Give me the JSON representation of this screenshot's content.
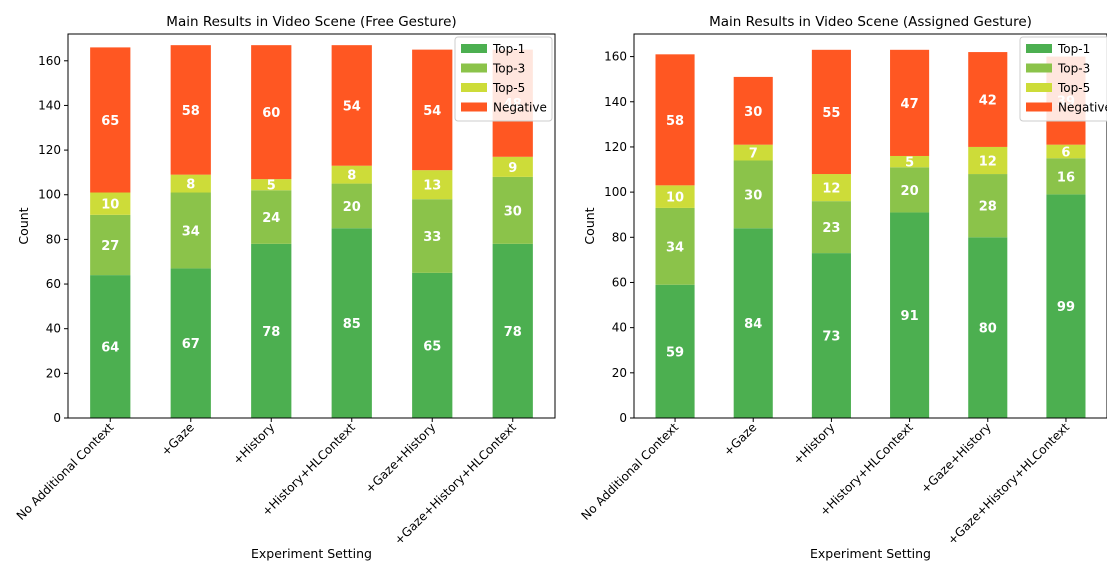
{
  "chart_data": [
    {
      "type": "bar",
      "stacked": true,
      "title": "Main Results in Video Scene (Free Gesture)",
      "xlabel": "Experiment Setting",
      "ylabel": "Count",
      "ylim": [
        0,
        172
      ],
      "yticks": [
        0,
        20,
        40,
        60,
        80,
        100,
        120,
        140,
        160
      ],
      "categories": [
        "No Additional Context",
        "+Gaze",
        "+History",
        "+History+HLContext",
        "+Gaze+History",
        "+Gaze+History+HLContext"
      ],
      "series": [
        {
          "name": "Top-1",
          "color": "#4caf50",
          "values": [
            64,
            67,
            78,
            85,
            65,
            78
          ]
        },
        {
          "name": "Top-3",
          "color": "#8bc34a",
          "values": [
            27,
            34,
            24,
            20,
            33,
            30
          ]
        },
        {
          "name": "Top-5",
          "color": "#cddc39",
          "values": [
            10,
            8,
            5,
            8,
            13,
            9
          ]
        },
        {
          "name": "Negative",
          "color": "#ff5722",
          "values": [
            65,
            58,
            60,
            54,
            54,
            48
          ]
        }
      ],
      "legend": "top-right",
      "grid": false
    },
    {
      "type": "bar",
      "stacked": true,
      "title": "Main Results in Video Scene (Assigned Gesture)",
      "xlabel": "Experiment Setting",
      "ylabel": "Count",
      "ylim": [
        0,
        170
      ],
      "yticks": [
        0,
        20,
        40,
        60,
        80,
        100,
        120,
        140,
        160
      ],
      "categories": [
        "No Additional Context",
        "+Gaze",
        "+History",
        "+History+HLContext",
        "+Gaze+History",
        "+Gaze+History+HLContext"
      ],
      "series": [
        {
          "name": "Top-1",
          "color": "#4caf50",
          "values": [
            59,
            84,
            73,
            91,
            80,
            99
          ]
        },
        {
          "name": "Top-3",
          "color": "#8bc34a",
          "values": [
            34,
            30,
            23,
            20,
            28,
            16
          ]
        },
        {
          "name": "Top-5",
          "color": "#cddc39",
          "values": [
            10,
            7,
            12,
            5,
            12,
            6
          ]
        },
        {
          "name": "Negative",
          "color": "#ff5722",
          "values": [
            58,
            30,
            55,
            47,
            42,
            39
          ]
        }
      ],
      "legend": "top-right",
      "grid": false
    }
  ]
}
